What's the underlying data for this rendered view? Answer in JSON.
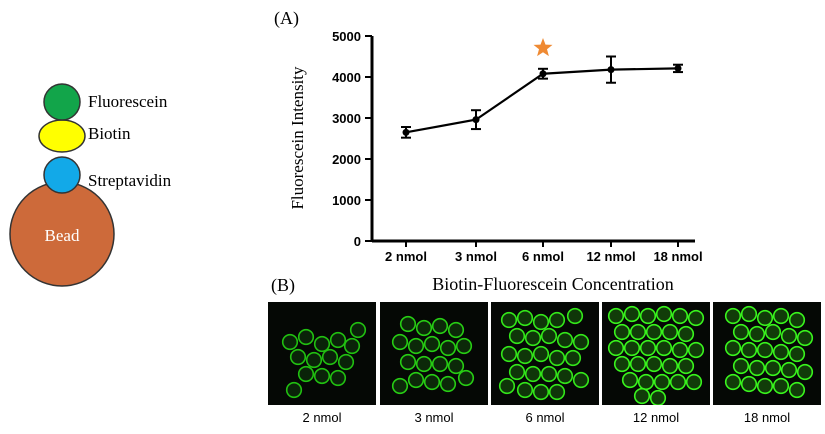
{
  "schematic": {
    "layers": [
      {
        "label": "Fluorescein",
        "color": "#12a54a"
      },
      {
        "label": "Biotin",
        "color": "#ffff00"
      },
      {
        "label": "Streptavidin",
        "color": "#12a9e8"
      },
      {
        "label": "Bead",
        "color": "#cd6a3a"
      }
    ]
  },
  "panel_a_label": "(A)",
  "panel_b_label": "(B)",
  "chart_data": {
    "type": "line",
    "title": "",
    "xlabel": "Biotin-Fluorescein Concentration",
    "ylabel": "Fluorescein Intensity",
    "categories": [
      "2 nmol",
      "3 nmol",
      "6 nmol",
      "12 nmol",
      "18 nmol"
    ],
    "values": [
      2650,
      2960,
      4080,
      4180,
      4210
    ],
    "errors": [
      130,
      230,
      120,
      320,
      90
    ],
    "ylim": [
      0,
      5000
    ],
    "yticks": [
      0,
      1000,
      2000,
      3000,
      4000,
      5000
    ],
    "highlight_category": "6 nmol",
    "highlight_color": "#ef8a33",
    "line_color": "#000000",
    "grid": false,
    "legend": "none"
  },
  "micrographs": [
    {
      "label": "2 nmol",
      "intensity": 0.55
    },
    {
      "label": "3 nmol",
      "intensity": 0.65
    },
    {
      "label": "6 nmol",
      "intensity": 0.85
    },
    {
      "label": "12 nmol",
      "intensity": 0.95
    },
    {
      "label": "18 nmol",
      "intensity": 0.95
    }
  ]
}
